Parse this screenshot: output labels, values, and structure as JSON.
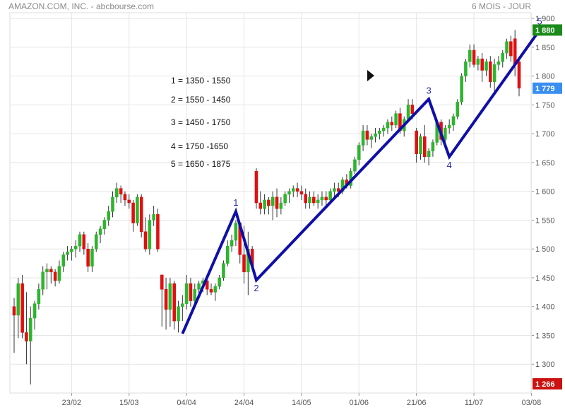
{
  "header": {
    "left": "AMAZON.COM, INC. - abcbourse.com",
    "right": "6 MOIS - JOUR"
  },
  "legend": [
    "1 = 1350 - 1550",
    "2 = 1550 - 1450",
    "3 = 1450 - 1750",
    "4 = 1750 -1650",
    "5 = 1650 - 1875"
  ],
  "badges": {
    "high": {
      "label": "1 880",
      "value": 1880,
      "color": "#1a8a1a"
    },
    "last": {
      "label": "1 779",
      "value": 1779,
      "color": "#3a8ef0"
    },
    "low": {
      "label": "1 266",
      "value": 1266,
      "color": "#cc1111"
    }
  },
  "colors": {
    "up": "#2db52d",
    "down": "#dd1111",
    "wave": "#0f0fa8",
    "grid": "#e6e6e6"
  },
  "chart_data": {
    "type": "candlestick",
    "ylim": [
      1250,
      1910
    ],
    "yticks": [
      1300,
      1350,
      1400,
      1450,
      1500,
      1550,
      1600,
      1650,
      1700,
      1750,
      1800,
      1850,
      1900
    ],
    "ytick_labels": [
      "1 300",
      "1 350",
      "1 400",
      "1 450",
      "1 500",
      "1 550",
      "1 600",
      "1 650",
      "1 700",
      "1 750",
      "1 800",
      "1 850",
      "1 900"
    ],
    "xticks": [
      "23/02",
      "15/03",
      "04/04",
      "24/04",
      "14/05",
      "01/06",
      "21/06",
      "11/07",
      "03/08"
    ],
    "xtick_index": [
      14,
      28,
      42,
      56,
      70,
      84,
      98,
      112,
      126
    ],
    "candles": [
      [
        1400,
        1415,
        1320,
        1385
      ],
      [
        1385,
        1450,
        1345,
        1440
      ],
      [
        1440,
        1455,
        1345,
        1355
      ],
      [
        1355,
        1425,
        1300,
        1340
      ],
      [
        1340,
        1400,
        1265,
        1380
      ],
      [
        1380,
        1410,
        1360,
        1405
      ],
      [
        1405,
        1440,
        1395,
        1430
      ],
      [
        1430,
        1470,
        1420,
        1460
      ],
      [
        1460,
        1475,
        1430,
        1465
      ],
      [
        1465,
        1470,
        1440,
        1460
      ],
      [
        1460,
        1465,
        1435,
        1445
      ],
      [
        1445,
        1480,
        1440,
        1470
      ],
      [
        1470,
        1495,
        1460,
        1490
      ],
      [
        1490,
        1505,
        1480,
        1495
      ],
      [
        1495,
        1505,
        1480,
        1500
      ],
      [
        1500,
        1515,
        1485,
        1505
      ],
      [
        1505,
        1530,
        1495,
        1525
      ],
      [
        1525,
        1530,
        1490,
        1500
      ],
      [
        1500,
        1510,
        1460,
        1470
      ],
      [
        1470,
        1505,
        1460,
        1500
      ],
      [
        1500,
        1530,
        1495,
        1525
      ],
      [
        1525,
        1540,
        1510,
        1535
      ],
      [
        1535,
        1555,
        1525,
        1550
      ],
      [
        1550,
        1575,
        1540,
        1565
      ],
      [
        1565,
        1600,
        1555,
        1590
      ],
      [
        1590,
        1615,
        1580,
        1605
      ],
      [
        1605,
        1610,
        1580,
        1595
      ],
      [
        1595,
        1600,
        1575,
        1585
      ],
      [
        1585,
        1595,
        1570,
        1580
      ],
      [
        1580,
        1585,
        1530,
        1545
      ],
      [
        1545,
        1595,
        1540,
        1590
      ],
      [
        1590,
        1595,
        1520,
        1530
      ],
      [
        1530,
        1555,
        1495,
        1500
      ],
      [
        1500,
        1560,
        1490,
        1550
      ],
      [
        1550,
        1575,
        1540,
        1560
      ],
      [
        1560,
        1570,
        1495,
        1500
      ],
      [
        1455,
        1455,
        1365,
        1430
      ],
      [
        1430,
        1450,
        1360,
        1395
      ],
      [
        1395,
        1450,
        1365,
        1440
      ],
      [
        1440,
        1445,
        1360,
        1375
      ],
      [
        1375,
        1410,
        1355,
        1400
      ],
      [
        1400,
        1420,
        1375,
        1405
      ],
      [
        1405,
        1455,
        1395,
        1440
      ],
      [
        1440,
        1450,
        1400,
        1410
      ],
      [
        1410,
        1440,
        1400,
        1430
      ],
      [
        1430,
        1445,
        1415,
        1440
      ],
      [
        1440,
        1450,
        1425,
        1445
      ],
      [
        1445,
        1450,
        1420,
        1430
      ],
      [
        1430,
        1440,
        1420,
        1425
      ],
      [
        1425,
        1440,
        1410,
        1435
      ],
      [
        1435,
        1455,
        1430,
        1450
      ],
      [
        1450,
        1480,
        1445,
        1475
      ],
      [
        1475,
        1515,
        1470,
        1505
      ],
      [
        1505,
        1525,
        1495,
        1515
      ],
      [
        1515,
        1550,
        1505,
        1545
      ],
      [
        1545,
        1545,
        1475,
        1490
      ],
      [
        1490,
        1540,
        1440,
        1460
      ],
      [
        1460,
        1530,
        1420,
        1500
      ],
      [
        1500,
        1505,
        1465,
        1470
      ],
      [
        1635,
        1640,
        1570,
        1580
      ],
      [
        1580,
        1600,
        1560,
        1570
      ],
      [
        1570,
        1595,
        1560,
        1585
      ],
      [
        1585,
        1590,
        1560,
        1575
      ],
      [
        1575,
        1600,
        1550,
        1590
      ],
      [
        1590,
        1605,
        1555,
        1570
      ],
      [
        1570,
        1590,
        1560,
        1580
      ],
      [
        1580,
        1600,
        1575,
        1595
      ],
      [
        1595,
        1605,
        1580,
        1600
      ],
      [
        1600,
        1610,
        1590,
        1605
      ],
      [
        1605,
        1615,
        1590,
        1600
      ],
      [
        1600,
        1610,
        1585,
        1595
      ],
      [
        1595,
        1605,
        1570,
        1580
      ],
      [
        1580,
        1600,
        1570,
        1590
      ],
      [
        1590,
        1600,
        1575,
        1580
      ],
      [
        1580,
        1595,
        1570,
        1585
      ],
      [
        1585,
        1600,
        1575,
        1590
      ],
      [
        1590,
        1600,
        1570,
        1585
      ],
      [
        1585,
        1605,
        1580,
        1600
      ],
      [
        1600,
        1615,
        1590,
        1605
      ],
      [
        1605,
        1615,
        1590,
        1600
      ],
      [
        1600,
        1625,
        1595,
        1620
      ],
      [
        1620,
        1630,
        1605,
        1610
      ],
      [
        1610,
        1640,
        1605,
        1635
      ],
      [
        1635,
        1660,
        1630,
        1655
      ],
      [
        1655,
        1685,
        1645,
        1680
      ],
      [
        1680,
        1715,
        1670,
        1705
      ],
      [
        1705,
        1715,
        1680,
        1690
      ],
      [
        1690,
        1700,
        1675,
        1695
      ],
      [
        1695,
        1710,
        1685,
        1700
      ],
      [
        1700,
        1710,
        1690,
        1705
      ],
      [
        1705,
        1715,
        1695,
        1710
      ],
      [
        1710,
        1725,
        1700,
        1720
      ],
      [
        1720,
        1730,
        1705,
        1715
      ],
      [
        1715,
        1740,
        1710,
        1735
      ],
      [
        1735,
        1745,
        1700,
        1705
      ],
      [
        1705,
        1730,
        1695,
        1725
      ],
      [
        1725,
        1760,
        1720,
        1750
      ],
      [
        1750,
        1760,
        1725,
        1735
      ],
      [
        1705,
        1710,
        1650,
        1665
      ],
      [
        1665,
        1700,
        1655,
        1695
      ],
      [
        1695,
        1715,
        1650,
        1660
      ],
      [
        1660,
        1675,
        1645,
        1670
      ],
      [
        1670,
        1690,
        1660,
        1685
      ],
      [
        1685,
        1725,
        1680,
        1720
      ],
      [
        1720,
        1725,
        1680,
        1690
      ],
      [
        1690,
        1715,
        1680,
        1710
      ],
      [
        1710,
        1725,
        1700,
        1715
      ],
      [
        1715,
        1735,
        1705,
        1730
      ],
      [
        1730,
        1760,
        1725,
        1755
      ],
      [
        1755,
        1805,
        1750,
        1800
      ],
      [
        1800,
        1830,
        1790,
        1825
      ],
      [
        1825,
        1855,
        1815,
        1845
      ],
      [
        1845,
        1855,
        1815,
        1820
      ],
      [
        1820,
        1835,
        1810,
        1830
      ],
      [
        1830,
        1840,
        1790,
        1810
      ],
      [
        1810,
        1830,
        1800,
        1825
      ],
      [
        1825,
        1835,
        1780,
        1790
      ],
      [
        1790,
        1830,
        1770,
        1820
      ],
      [
        1820,
        1835,
        1810,
        1825
      ],
      [
        1825,
        1845,
        1815,
        1840
      ],
      [
        1840,
        1865,
        1830,
        1860
      ],
      [
        1860,
        1870,
        1825,
        1835
      ],
      [
        1865,
        1880,
        1800,
        1820
      ],
      [
        1825,
        1830,
        1765,
        1779
      ]
    ],
    "waves": [
      {
        "label": "",
        "index": 41,
        "value": 1353
      },
      {
        "label": "1",
        "index": 54,
        "value": 1565
      },
      {
        "label": "2",
        "index": 59,
        "value": 1446
      },
      {
        "label": "3",
        "index": 101,
        "value": 1760
      },
      {
        "label": "4",
        "index": 106,
        "value": 1660
      },
      {
        "label": "5",
        "index": 128,
        "value": 1880
      }
    ]
  }
}
